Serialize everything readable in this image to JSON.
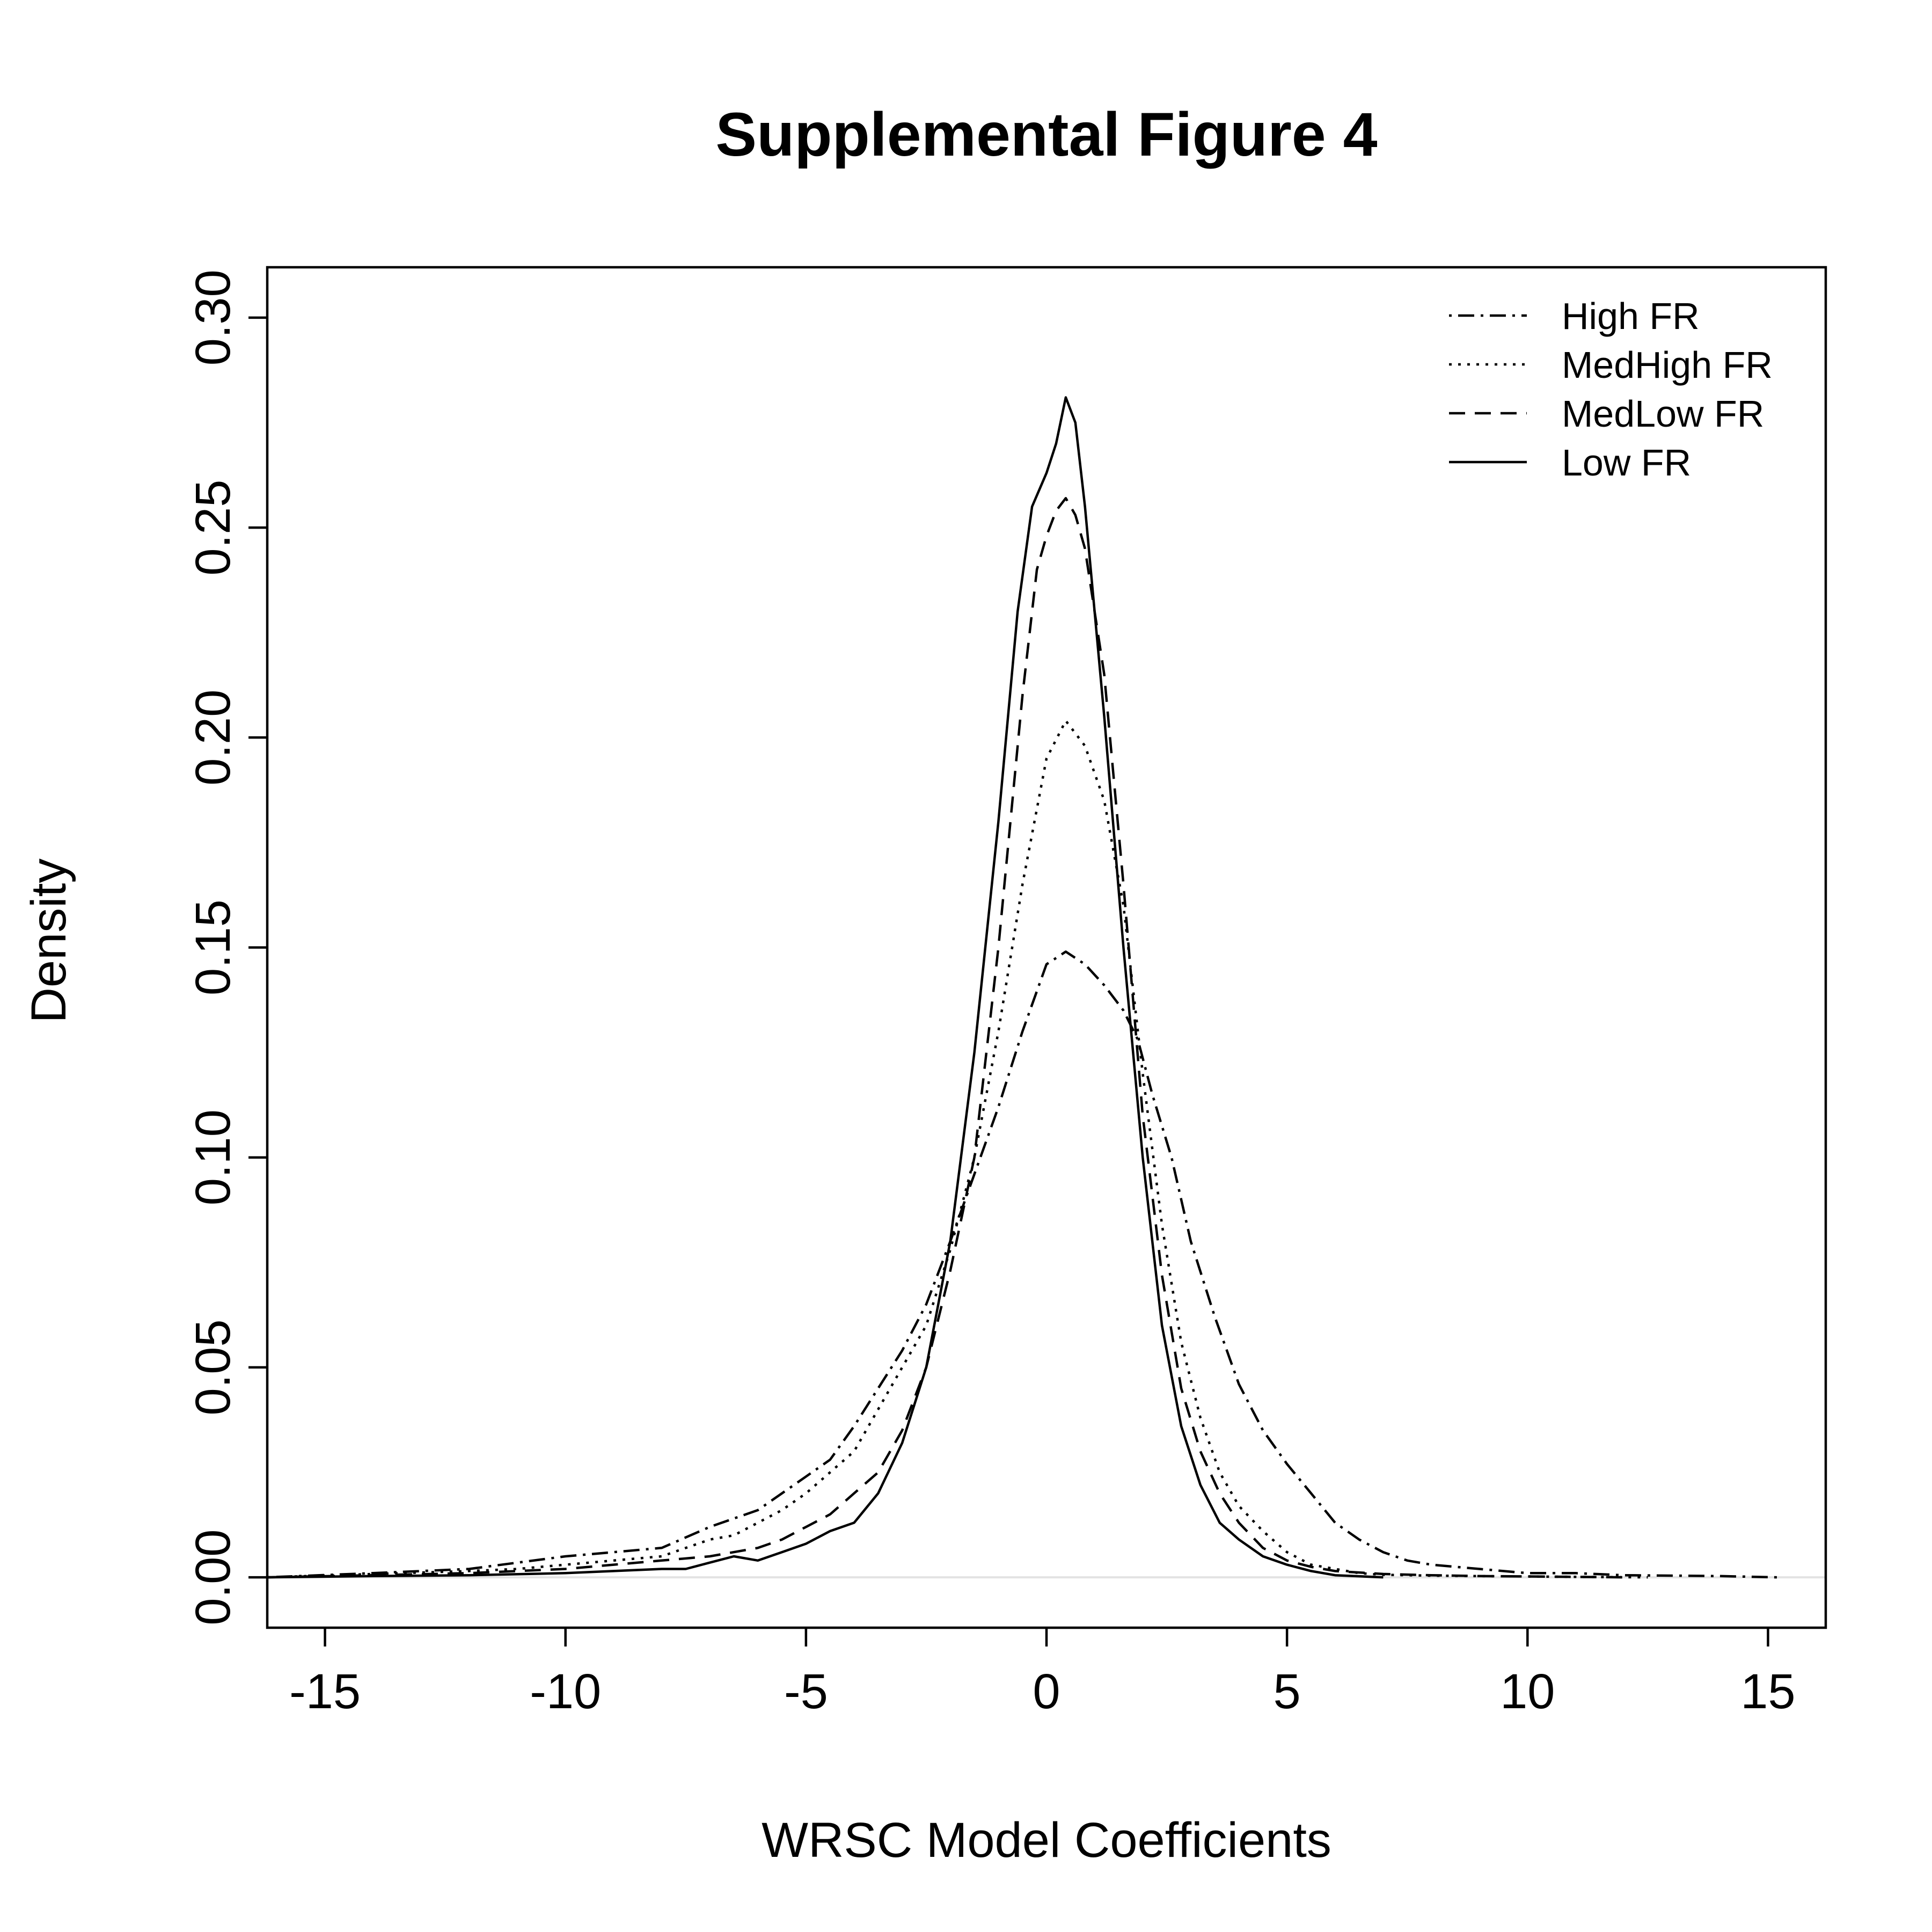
{
  "chart_data": {
    "type": "line",
    "title": "Supplemental Figure 4",
    "xlabel": "WRSC Model Coefficients",
    "ylabel": "Density",
    "xlim": [
      -16.2,
      16.2
    ],
    "ylim": [
      -0.012,
      0.312
    ],
    "x_ticks": [
      -15,
      -10,
      -5,
      0,
      5,
      10,
      15
    ],
    "x_tick_labels": [
      "-15",
      "-10",
      "-5",
      "0",
      "5",
      "10",
      "15"
    ],
    "y_ticks": [
      0.0,
      0.05,
      0.1,
      0.15,
      0.2,
      0.25,
      0.3
    ],
    "y_tick_labels": [
      "0.00",
      "0.05",
      "0.10",
      "0.15",
      "0.20",
      "0.25",
      "0.30"
    ],
    "reference_line_y": 0,
    "grid": false,
    "legend_position": "top-right",
    "series": [
      {
        "name": "High FR",
        "dash": "dotdash",
        "x": [
          -16.2,
          -14,
          -12,
          -10,
          -9,
          -8,
          -7,
          -6,
          -5,
          -4.5,
          -4,
          -3.5,
          -3,
          -2.5,
          -2,
          -1.5,
          -1,
          -0.5,
          0,
          0.4,
          0.8,
          1.2,
          1.6,
          1.9,
          2.2,
          2.6,
          3,
          3.5,
          4,
          4.5,
          5,
          5.5,
          6,
          6.5,
          7,
          7.5,
          8,
          9,
          10,
          11,
          12,
          13,
          14,
          15.2
        ],
        "y": [
          0.0,
          0.001,
          0.002,
          0.005,
          0.006,
          0.007,
          0.012,
          0.016,
          0.024,
          0.028,
          0.036,
          0.045,
          0.054,
          0.065,
          0.08,
          0.096,
          0.112,
          0.13,
          0.146,
          0.149,
          0.146,
          0.141,
          0.135,
          0.128,
          0.115,
          0.1,
          0.08,
          0.062,
          0.046,
          0.035,
          0.027,
          0.02,
          0.013,
          0.009,
          0.006,
          0.004,
          0.003,
          0.002,
          0.001,
          0.001,
          0.0005,
          0.0004,
          0.0003,
          0.0
        ]
      },
      {
        "name": "MedHigh FR",
        "dash": "dotted",
        "x": [
          -16.2,
          -14,
          -12,
          -11,
          -10,
          -9,
          -8,
          -7,
          -6.5,
          -6,
          -5.5,
          -5,
          -4.5,
          -4,
          -3.5,
          -3,
          -2.5,
          -2,
          -1.5,
          -1,
          -0.5,
          0,
          0.4,
          0.8,
          1.2,
          1.6,
          2,
          2.4,
          2.8,
          3.2,
          3.6,
          4,
          4.5,
          5,
          5.5,
          6,
          6.5,
          7,
          8,
          9,
          10,
          11,
          12.5
        ],
        "y": [
          0.0,
          0.0008,
          0.0015,
          0.002,
          0.003,
          0.004,
          0.005,
          0.009,
          0.01,
          0.013,
          0.016,
          0.02,
          0.025,
          0.03,
          0.04,
          0.05,
          0.06,
          0.078,
          0.1,
          0.13,
          0.165,
          0.195,
          0.204,
          0.198,
          0.185,
          0.16,
          0.12,
          0.084,
          0.056,
          0.038,
          0.025,
          0.017,
          0.011,
          0.006,
          0.003,
          0.002,
          0.001,
          0.0006,
          0.0004,
          0.0003,
          0.0002,
          0.0001,
          0.0
        ]
      },
      {
        "name": "MedLow FR",
        "dash": "dashed",
        "x": [
          -16.2,
          -14,
          -12,
          -10,
          -9,
          -8,
          -7,
          -6,
          -5.5,
          -5,
          -4.5,
          -4,
          -3.5,
          -3,
          -2.5,
          -2,
          -1.5,
          -1,
          -0.5,
          -0.2,
          0,
          0.2,
          0.4,
          0.6,
          0.8,
          1.2,
          1.6,
          2,
          2.4,
          2.8,
          3.2,
          3.6,
          4,
          4.5,
          5,
          5.5,
          6,
          7,
          8,
          9,
          10,
          11,
          12
        ],
        "y": [
          0.0,
          0.0005,
          0.001,
          0.002,
          0.003,
          0.004,
          0.005,
          0.007,
          0.009,
          0.012,
          0.015,
          0.02,
          0.025,
          0.035,
          0.05,
          0.073,
          0.1,
          0.15,
          0.21,
          0.24,
          0.248,
          0.254,
          0.257,
          0.253,
          0.245,
          0.215,
          0.165,
          0.11,
          0.072,
          0.045,
          0.03,
          0.02,
          0.013,
          0.007,
          0.004,
          0.0025,
          0.0015,
          0.0008,
          0.0005,
          0.0003,
          0.0002,
          0.0001,
          0.0
        ]
      },
      {
        "name": "Low FR",
        "dash": "solid",
        "x": [
          -16.2,
          -14,
          -12,
          -10,
          -9,
          -8,
          -7.5,
          -7,
          -6.5,
          -6,
          -5.5,
          -5,
          -4.5,
          -4,
          -3.5,
          -3,
          -2.5,
          -2,
          -1.5,
          -1,
          -0.6,
          -0.3,
          0,
          0.2,
          0.4,
          0.6,
          0.8,
          1.2,
          1.6,
          2,
          2.4,
          2.8,
          3.2,
          3.6,
          4,
          4.5,
          5,
          5.5,
          6,
          7
        ],
        "y": [
          0.0,
          0.0003,
          0.0005,
          0.001,
          0.0015,
          0.002,
          0.002,
          0.0035,
          0.005,
          0.004,
          0.006,
          0.008,
          0.011,
          0.013,
          0.02,
          0.032,
          0.05,
          0.08,
          0.125,
          0.18,
          0.23,
          0.255,
          0.263,
          0.27,
          0.281,
          0.275,
          0.255,
          0.205,
          0.15,
          0.1,
          0.06,
          0.036,
          0.022,
          0.013,
          0.009,
          0.005,
          0.003,
          0.0015,
          0.0005,
          0.0
        ]
      }
    ]
  }
}
